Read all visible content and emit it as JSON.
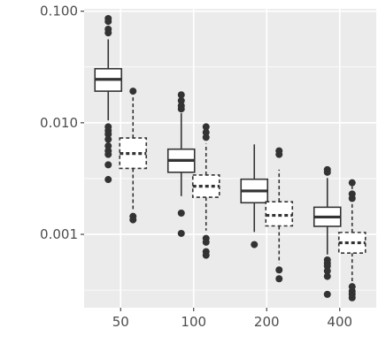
{
  "chart_data": {
    "type": "boxplot",
    "title": "",
    "xlabel": "",
    "ylabel": "",
    "y_scale": "log10",
    "ylim": [
      0.00022,
      0.105
    ],
    "y_ticks": [
      {
        "value": 0.1,
        "label": "0.100"
      },
      {
        "value": 0.01,
        "label": "0.010"
      },
      {
        "value": 0.001,
        "label": "0.001"
      }
    ],
    "categories": [
      "50",
      "100",
      "200",
      "400"
    ],
    "grid": true,
    "legend": "none",
    "series": [
      {
        "line_style": "solid",
        "boxes": [
          {
            "category": "50",
            "whisker_low": 0.0105,
            "q1": 0.0192,
            "median": 0.0245,
            "q3": 0.0305,
            "whisker_high": 0.056,
            "outliers": [
              0.086,
              0.081,
              0.069,
              0.064,
              0.0092,
              0.0085,
              0.0079,
              0.0071,
              0.0062,
              0.0056,
              0.0052,
              0.0042,
              0.0031
            ]
          },
          {
            "category": "100",
            "whisker_low": 0.0022,
            "q1": 0.0036,
            "median": 0.0046,
            "q3": 0.0058,
            "whisker_high": 0.0122,
            "outliers": [
              0.0178,
              0.0158,
              0.0142,
              0.0133,
              0.00155,
              0.00102
            ]
          },
          {
            "category": "200",
            "whisker_low": 0.00105,
            "q1": 0.00192,
            "median": 0.00245,
            "q3": 0.00312,
            "whisker_high": 0.0064,
            "outliers": [
              0.00081
            ]
          },
          {
            "category": "400",
            "whisker_low": 0.00066,
            "q1": 0.00118,
            "median": 0.00143,
            "q3": 0.00175,
            "whisker_high": 0.0032,
            "outliers": [
              0.0038,
              0.0036,
              0.00059,
              0.00055,
              0.00052,
              0.00047,
              0.00042,
              0.00029
            ]
          }
        ]
      },
      {
        "line_style": "dashed",
        "boxes": [
          {
            "category": "50",
            "whisker_low": 0.0016,
            "q1": 0.0039,
            "median": 0.0053,
            "q3": 0.0073,
            "whisker_high": 0.0175,
            "outliers": [
              0.0192,
              0.00145,
              0.00135
            ]
          },
          {
            "category": "100",
            "whisker_low": 0.00108,
            "q1": 0.00215,
            "median": 0.0027,
            "q3": 0.0034,
            "whisker_high": 0.0065,
            "outliers": [
              0.0092,
              0.0082,
              0.0074,
              0.00092,
              0.00085,
              0.0007,
              0.00065
            ]
          },
          {
            "category": "200",
            "whisker_low": 0.00055,
            "q1": 0.00119,
            "median": 0.00148,
            "q3": 0.00196,
            "whisker_high": 0.0038,
            "outliers": [
              0.0056,
              0.0052,
              0.00048,
              0.0004
            ]
          },
          {
            "category": "400",
            "whisker_low": 0.00038,
            "q1": 0.00068,
            "median": 0.00084,
            "q3": 0.00104,
            "whisker_high": 0.0027,
            "outliers": [
              0.0029,
              0.0023,
              0.0021,
              0.00034,
              0.00031,
              0.00029,
              0.00027
            ]
          }
        ]
      }
    ]
  }
}
